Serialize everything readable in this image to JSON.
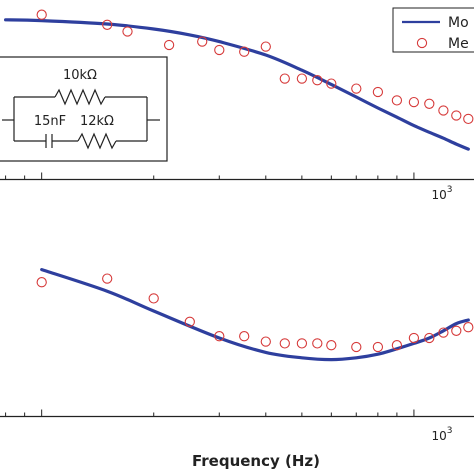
{
  "chart_data": [
    {
      "type": "line",
      "xscale": "log",
      "xlim": [
        70,
        1450
      ],
      "ylim": [
        0,
        1
      ],
      "x_tick_labels": [
        {
          "value": 1000,
          "base": "10",
          "exp": "3"
        }
      ],
      "grid": false,
      "legend": {
        "placement": "top-right",
        "entries": [
          {
            "label": "Mo",
            "marker": "line"
          },
          {
            "label": "Me",
            "marker": "circle"
          }
        ]
      },
      "inset": {
        "placement": "left",
        "labels": [
          "10kΩ",
          "15nF",
          "12kΩ"
        ]
      },
      "series": [
        {
          "marker": "line",
          "color": "#2e3f9e",
          "x": [
            80,
            100,
            150,
            200,
            250,
            300,
            400,
            500,
            600,
            700,
            800,
            900,
            1000,
            1100,
            1200,
            1300,
            1400
          ],
          "y": [
            0.93,
            0.925,
            0.905,
            0.875,
            0.84,
            0.8,
            0.72,
            0.63,
            0.545,
            0.47,
            0.405,
            0.35,
            0.3,
            0.26,
            0.225,
            0.19,
            0.16
          ]
        },
        {
          "marker": "circle",
          "color": "#d63a3a",
          "x": [
            100,
            150,
            170,
            220,
            270,
            300,
            350,
            400,
            450,
            500,
            550,
            600,
            700,
            800,
            900,
            1000,
            1100,
            1200,
            1300,
            1400
          ],
          "y": [
            0.96,
            0.9,
            0.86,
            0.78,
            0.8,
            0.75,
            0.74,
            0.77,
            0.58,
            0.58,
            0.57,
            0.55,
            0.52,
            0.5,
            0.45,
            0.44,
            0.43,
            0.39,
            0.36,
            0.34
          ]
        }
      ]
    },
    {
      "type": "line",
      "xscale": "log",
      "xlim": [
        70,
        1450
      ],
      "ylim": [
        0,
        1
      ],
      "x_tick_labels": [
        {
          "value": 1000,
          "base": "10",
          "exp": "3"
        }
      ],
      "xlabel": "Frequency (Hz)",
      "grid": false,
      "series": [
        {
          "marker": "line",
          "color": "#2e3f9e",
          "x": [
            100,
            150,
            200,
            300,
            400,
            500,
            600,
            700,
            800,
            900,
            1000,
            1100,
            1200,
            1300,
            1400
          ],
          "y": [
            0.78,
            0.66,
            0.55,
            0.4,
            0.32,
            0.29,
            0.28,
            0.29,
            0.31,
            0.34,
            0.37,
            0.4,
            0.44,
            0.48,
            0.5
          ]
        },
        {
          "marker": "circle",
          "color": "#d63a3a",
          "x": [
            100,
            150,
            200,
            250,
            300,
            350,
            400,
            450,
            500,
            550,
            600,
            700,
            800,
            900,
            1000,
            1100,
            1200,
            1300,
            1400
          ],
          "y": [
            0.71,
            0.73,
            0.62,
            0.49,
            0.41,
            0.41,
            0.38,
            0.37,
            0.37,
            0.37,
            0.36,
            0.35,
            0.35,
            0.36,
            0.4,
            0.4,
            0.43,
            0.44,
            0.46
          ]
        }
      ]
    }
  ]
}
